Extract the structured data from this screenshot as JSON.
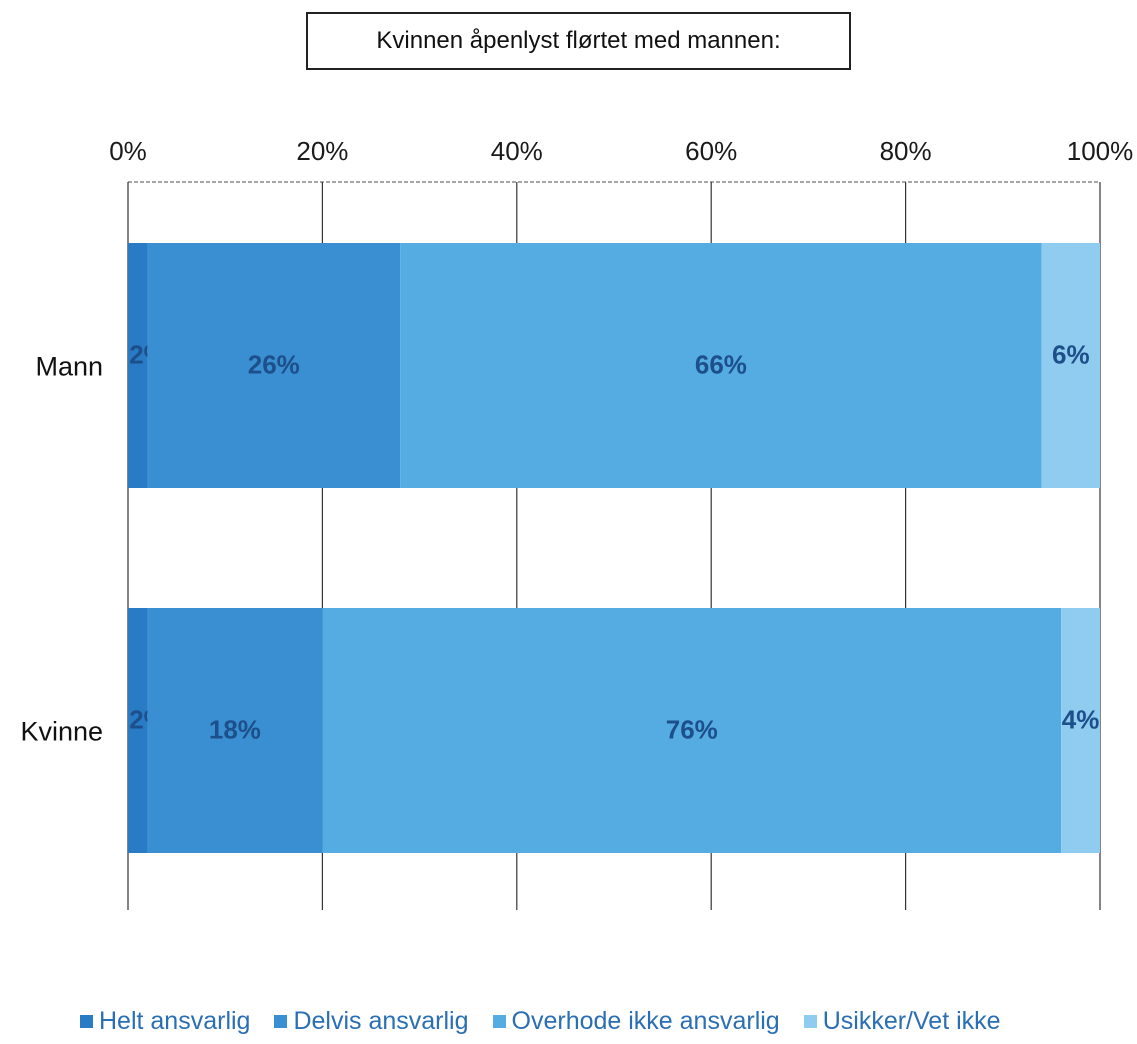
{
  "chart_data": {
    "type": "bar",
    "orientation": "horizontal",
    "stacked": true,
    "title": "Kvinnen åpenlyst flørtet med mannen:",
    "categories": [
      "Mann",
      "Kvinne"
    ],
    "series": [
      {
        "name": "Helt ansvarlig",
        "values": [
          2,
          2
        ],
        "labels": [
          "2%",
          "2%"
        ],
        "color": "#2a7bc6"
      },
      {
        "name": "Delvis ansvarlig",
        "values": [
          26,
          18
        ],
        "labels": [
          "26%",
          "18%"
        ],
        "color": "#3a8fd2"
      },
      {
        "name": "Overhode ikke ansvarlig",
        "values": [
          66,
          76
        ],
        "labels": [
          "66%",
          "76%"
        ],
        "color": "#55ace3"
      },
      {
        "name": "Usikker/Vet ikke",
        "values": [
          6,
          4
        ],
        "labels": [
          "6%",
          "4%"
        ],
        "color": "#8fccef"
      }
    ],
    "xlim": [
      0,
      100
    ],
    "xticks": [
      "0%",
      "20%",
      "40%",
      "60%",
      "80%",
      "100%"
    ],
    "grid": true,
    "legend_position": "bottom"
  }
}
